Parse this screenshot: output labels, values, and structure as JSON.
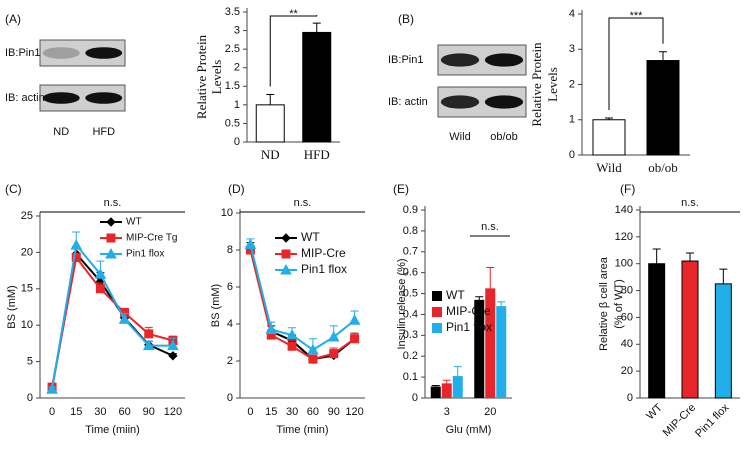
{
  "chart_data": [
    {
      "type": "bar",
      "panel_label": "(A)",
      "blot": {
        "rows": [
          "IB:Pin1",
          "IB: actin"
        ],
        "lanes": [
          "ND",
          "HFD"
        ]
      },
      "ylabel": [
        "Relative Protein",
        "Levels"
      ],
      "categories": [
        "ND",
        "HFD"
      ],
      "values": [
        1,
        2.95
      ],
      "errors": [
        0.28,
        0.25
      ],
      "colors": [
        "#ffffff",
        "#000000"
      ],
      "ylim": [
        0,
        3.5
      ],
      "yticks": [
        0,
        0.5,
        1,
        1.5,
        2,
        2.5,
        3,
        3.5
      ],
      "annotation": "**"
    },
    {
      "type": "bar",
      "panel_label": "(B)",
      "blot": {
        "rows": [
          "IB:Pin1",
          "IB: actin"
        ],
        "lanes": [
          "Wild",
          "ob/ob"
        ]
      },
      "ylabel": [
        "Relative Protein",
        "Levels"
      ],
      "categories": [
        "Wild",
        "ob/ob"
      ],
      "values": [
        1,
        2.68
      ],
      "errors": [
        0.05,
        0.25
      ],
      "colors": [
        "#ffffff",
        "#000000"
      ],
      "ylim": [
        0,
        4
      ],
      "yticks": [
        0,
        1,
        2,
        3,
        4
      ],
      "annotation": "***"
    },
    {
      "type": "line",
      "panel_label": "(C)",
      "xlabel": "Time (miin)",
      "ylabel": [
        "BS (mM)"
      ],
      "annotation": "n.s.",
      "categories": [
        "0",
        "15",
        "30",
        "60",
        "90",
        "120"
      ],
      "ylim": [
        0,
        25
      ],
      "yticks": [
        0,
        5,
        10,
        15,
        20,
        25
      ],
      "series": [
        {
          "name": "WT",
          "color": "#000000",
          "marker": "diamond",
          "values": [
            1.3,
            19.8,
            16,
            11,
            7.3,
            5.8
          ],
          "errors": [
            0.3,
            1.0,
            1.2,
            0.6,
            0.5,
            0.3
          ]
        },
        {
          "name": "MIP-Cre Tg",
          "color": "#e8262a",
          "marker": "square",
          "values": [
            1.5,
            19.3,
            15,
            11.7,
            8.8,
            7.9
          ],
          "errors": [
            0.3,
            1.2,
            0.8,
            0.6,
            0.9,
            0.6
          ]
        },
        {
          "name": "Pin1 flox",
          "color": "#22aee8",
          "marker": "triangle",
          "values": [
            1.2,
            21,
            17,
            10.8,
            7.2,
            7.2
          ],
          "errors": [
            0.3,
            1.8,
            1.8,
            0.8,
            0.6,
            1.0
          ]
        }
      ]
    },
    {
      "type": "line",
      "panel_label": "(D)",
      "xlabel": "Time (min)",
      "ylabel": [
        "BS (mM)"
      ],
      "annotation": "n.s.",
      "categories": [
        "0",
        "15",
        "30",
        "60",
        "90",
        "120"
      ],
      "ylim": [
        0,
        10
      ],
      "yticks": [
        0,
        2,
        4,
        6,
        8,
        10
      ],
      "series": [
        {
          "name": "WT",
          "color": "#000000",
          "marker": "diamond",
          "values": [
            8.2,
            3.6,
            3.1,
            2.1,
            2.3,
            3.2
          ],
          "errors": [
            0.2,
            0.3,
            0.3,
            0.2,
            0.3,
            0.3
          ]
        },
        {
          "name": "MIP-Cre",
          "color": "#e8262a",
          "marker": "square",
          "values": [
            8,
            3.4,
            2.8,
            2.1,
            2.4,
            3.2
          ],
          "errors": [
            0.2,
            0.3,
            0.3,
            0.2,
            0.3,
            0.3
          ]
        },
        {
          "name": "Pin1 flox",
          "color": "#22aee8",
          "marker": "triangle",
          "values": [
            8.3,
            3.7,
            3.4,
            2.6,
            3.3,
            4.2
          ],
          "errors": [
            0.3,
            0.4,
            0.4,
            0.6,
            0.6,
            0.5
          ]
        }
      ]
    },
    {
      "type": "grouped_bar",
      "panel_label": "(E)",
      "xlabel": "Glu (mM)",
      "ylabel": [
        "Insulin release (%)"
      ],
      "annotation": "n.s.",
      "categories": [
        "3",
        "20"
      ],
      "ylim": [
        0,
        0.9
      ],
      "yticks": [
        0,
        0.1,
        0.2,
        0.3,
        0.4,
        0.5,
        0.6,
        0.7,
        0.8,
        0.9
      ],
      "series": [
        {
          "name": "WT",
          "color": "#000000",
          "values": [
            0.055,
            0.47
          ],
          "errors": [
            0.005,
            0.015
          ]
        },
        {
          "name": "MIP-Cre",
          "color": "#e8262a",
          "values": [
            0.07,
            0.525
          ],
          "errors": [
            0.015,
            0.1
          ]
        },
        {
          "name": "Pin1 flox",
          "color": "#22aee8",
          "values": [
            0.105,
            0.44
          ],
          "errors": [
            0.045,
            0.02
          ]
        }
      ]
    },
    {
      "type": "bar",
      "panel_label": "(F)",
      "ylabel": [
        "Relative β cell area",
        "(% of WT)"
      ],
      "annotation": "n.s.",
      "categories": [
        "WT",
        "MIP-Cre",
        "Pin1 flox"
      ],
      "values": [
        100,
        102,
        85
      ],
      "errors": [
        11,
        6,
        11
      ],
      "colors": [
        "#000000",
        "#e8262a",
        "#22aee8"
      ],
      "ylim": [
        0,
        140
      ],
      "yticks": [
        0,
        20,
        40,
        60,
        80,
        100,
        120,
        140
      ],
      "rotate_labels": true
    }
  ]
}
